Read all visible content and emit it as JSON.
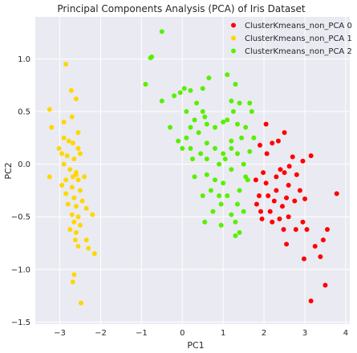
{
  "chart_data": {
    "type": "scatter",
    "title": "Principal Components Analysis (PCA) of Iris Dataset",
    "xlabel": "PC1",
    "ylabel": "PC2",
    "xlim": [
      -3.6,
      4.1
    ],
    "ylim": [
      -1.52,
      1.4
    ],
    "xticks": [
      -3,
      -2,
      -1,
      0,
      1,
      2,
      3,
      4
    ],
    "yticks": [
      -1.5,
      -1.0,
      -0.5,
      0.0,
      0.5,
      1.0
    ],
    "ytick_labels": [
      "−1.5",
      "−1.0",
      "−0.5",
      "0.0",
      "0.5",
      "1.0"
    ],
    "xtick_labels": [
      "−3",
      "−2",
      "−1",
      "0",
      "1",
      "2",
      "3",
      "4"
    ],
    "grid": true,
    "background": "#eaeaf2",
    "legend_position": "top-right",
    "series": [
      {
        "name": "ClusterKmeans_non_PCA 0",
        "color": "#ff0000",
        "points": [
          [
            1.9,
            0.18
          ],
          [
            1.8,
            -0.15
          ],
          [
            1.98,
            -0.08
          ],
          [
            2.07,
            0.1
          ],
          [
            2.2,
            0.2
          ],
          [
            2.35,
            0.22
          ],
          [
            2.5,
            0.3
          ],
          [
            2.05,
            0.38
          ],
          [
            1.88,
            -0.3
          ],
          [
            2.05,
            -0.18
          ],
          [
            2.3,
            -0.12
          ],
          [
            2.5,
            -0.08
          ],
          [
            2.8,
            -0.1
          ],
          [
            2.62,
            -0.02
          ],
          [
            2.7,
            0.07
          ],
          [
            2.95,
            0.03
          ],
          [
            3.15,
            0.08
          ],
          [
            2.45,
            -0.4
          ],
          [
            2.3,
            -0.25
          ],
          [
            2.1,
            -0.3
          ],
          [
            1.82,
            -0.38
          ],
          [
            1.95,
            -0.52
          ],
          [
            2.15,
            -0.45
          ],
          [
            2.25,
            -0.35
          ],
          [
            2.55,
            -0.32
          ],
          [
            2.75,
            -0.35
          ],
          [
            3.0,
            -0.33
          ],
          [
            2.38,
            -0.52
          ],
          [
            2.6,
            -0.5
          ],
          [
            2.95,
            -0.55
          ],
          [
            2.48,
            -0.62
          ],
          [
            2.78,
            -0.62
          ],
          [
            3.05,
            -0.62
          ],
          [
            2.55,
            -0.76
          ],
          [
            3.25,
            -0.78
          ],
          [
            3.45,
            -0.72
          ],
          [
            3.55,
            -0.62
          ],
          [
            3.38,
            -0.88
          ],
          [
            2.98,
            -0.9
          ],
          [
            3.78,
            -0.28
          ],
          [
            3.5,
            -1.15
          ],
          [
            3.15,
            -1.3
          ],
          [
            1.92,
            -0.45
          ],
          [
            2.2,
            -0.55
          ],
          [
            2.6,
            -0.2
          ],
          [
            2.88,
            -0.25
          ],
          [
            2.4,
            -0.05
          ]
        ]
      },
      {
        "name": "ClusterKmeans_non_PCA 1",
        "color": "#ffd700",
        "points": [
          [
            -2.85,
            0.95
          ],
          [
            -2.72,
            0.7
          ],
          [
            -2.6,
            0.62
          ],
          [
            -3.25,
            0.52
          ],
          [
            -3.2,
            0.35
          ],
          [
            -2.9,
            0.4
          ],
          [
            -2.7,
            0.45
          ],
          [
            -2.55,
            0.3
          ],
          [
            -2.9,
            0.25
          ],
          [
            -2.78,
            0.22
          ],
          [
            -2.68,
            0.2
          ],
          [
            -2.55,
            0.15
          ],
          [
            -3.02,
            0.15
          ],
          [
            -2.95,
            0.1
          ],
          [
            -2.82,
            0.08
          ],
          [
            -2.65,
            0.05
          ],
          [
            -2.5,
            0.1
          ],
          [
            -2.9,
            0.0
          ],
          [
            -2.75,
            -0.05
          ],
          [
            -2.6,
            -0.08
          ],
          [
            -3.25,
            -0.12
          ],
          [
            -2.85,
            -0.15
          ],
          [
            -2.68,
            -0.12
          ],
          [
            -2.55,
            -0.15
          ],
          [
            -2.4,
            -0.12
          ],
          [
            -2.95,
            -0.2
          ],
          [
            -2.7,
            -0.22
          ],
          [
            -2.5,
            -0.25
          ],
          [
            -2.85,
            -0.28
          ],
          [
            -2.65,
            -0.32
          ],
          [
            -2.45,
            -0.35
          ],
          [
            -2.8,
            -0.38
          ],
          [
            -2.6,
            -0.4
          ],
          [
            -2.35,
            -0.42
          ],
          [
            -2.7,
            -0.48
          ],
          [
            -2.2,
            -0.48
          ],
          [
            -2.55,
            -0.5
          ],
          [
            -2.65,
            -0.55
          ],
          [
            -2.5,
            -0.58
          ],
          [
            -2.75,
            -0.62
          ],
          [
            -2.6,
            -0.65
          ],
          [
            -2.35,
            -0.72
          ],
          [
            -2.62,
            -0.72
          ],
          [
            -2.55,
            -0.78
          ],
          [
            -2.3,
            -0.8
          ],
          [
            -2.15,
            -0.85
          ],
          [
            -2.65,
            -1.05
          ],
          [
            -2.68,
            -1.12
          ],
          [
            -2.48,
            -1.32
          ],
          [
            -2.6,
            -0.1
          ]
        ]
      },
      {
        "name": "ClusterKmeans_non_PCA 2",
        "color": "#58f000",
        "points": [
          [
            -0.5,
            1.26
          ],
          [
            -0.78,
            1.01
          ],
          [
            -0.75,
            1.02
          ],
          [
            -0.9,
            0.76
          ],
          [
            -0.5,
            0.6
          ],
          [
            0.05,
            0.72
          ],
          [
            -0.05,
            0.68
          ],
          [
            -0.2,
            0.65
          ],
          [
            0.2,
            0.7
          ],
          [
            0.5,
            0.72
          ],
          [
            0.65,
            0.82
          ],
          [
            1.1,
            0.85
          ],
          [
            1.3,
            0.76
          ],
          [
            1.4,
            0.58
          ],
          [
            1.65,
            0.58
          ],
          [
            1.7,
            0.5
          ],
          [
            1.25,
            0.5
          ],
          [
            1.1,
            0.42
          ],
          [
            1.35,
            0.38
          ],
          [
            1.55,
            0.35
          ],
          [
            1.45,
            0.25
          ],
          [
            1.2,
            0.22
          ],
          [
            1.0,
            0.4
          ],
          [
            0.8,
            0.35
          ],
          [
            0.6,
            0.38
          ],
          [
            0.5,
            0.5
          ],
          [
            0.3,
            0.42
          ],
          [
            0.35,
            0.58
          ],
          [
            0.1,
            0.5
          ],
          [
            -0.3,
            0.35
          ],
          [
            0.2,
            0.35
          ],
          [
            0.1,
            0.25
          ],
          [
            0.2,
            0.15
          ],
          [
            0.0,
            0.15
          ],
          [
            -0.1,
            0.22
          ],
          [
            0.4,
            0.3
          ],
          [
            0.6,
            0.2
          ],
          [
            0.8,
            0.15
          ],
          [
            1.0,
            0.1
          ],
          [
            1.2,
            0.15
          ],
          [
            1.35,
            0.1
          ],
          [
            1.5,
            0.0
          ],
          [
            1.2,
            -0.05
          ],
          [
            0.9,
            0.0
          ],
          [
            0.6,
            0.05
          ],
          [
            0.45,
            0.1
          ],
          [
            0.6,
            -0.1
          ],
          [
            0.8,
            -0.15
          ],
          [
            1.0,
            -0.18
          ],
          [
            0.7,
            -0.25
          ],
          [
            0.9,
            -0.3
          ],
          [
            1.1,
            -0.3
          ],
          [
            1.4,
            -0.25
          ],
          [
            1.55,
            -0.12
          ],
          [
            1.35,
            -0.38
          ],
          [
            1.5,
            -0.45
          ],
          [
            1.3,
            -0.55
          ],
          [
            1.2,
            -0.48
          ],
          [
            0.95,
            -0.38
          ],
          [
            0.75,
            -0.45
          ],
          [
            0.55,
            -0.55
          ],
          [
            0.95,
            -0.58
          ],
          [
            1.4,
            -0.65
          ],
          [
            1.3,
            -0.68
          ],
          [
            0.5,
            -0.3
          ],
          [
            1.6,
            -0.15
          ],
          [
            0.3,
            -0.12
          ],
          [
            1.05,
            0.05
          ],
          [
            0.25,
            0.05
          ],
          [
            1.2,
            0.6
          ],
          [
            0.55,
            0.45
          ],
          [
            1.75,
            0.25
          ],
          [
            1.65,
            0.12
          ]
        ]
      }
    ]
  }
}
